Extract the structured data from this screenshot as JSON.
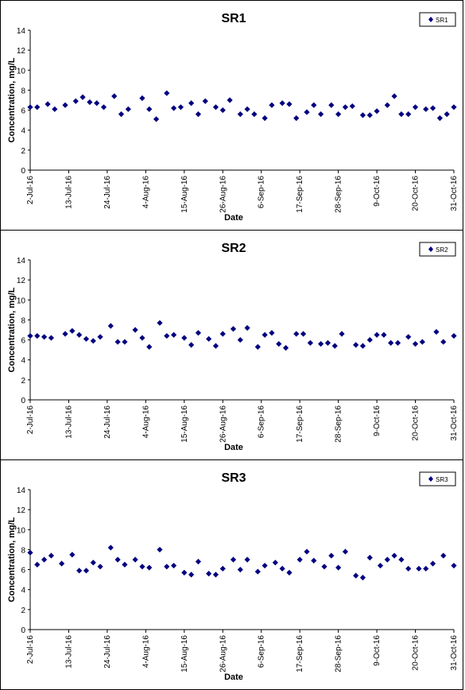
{
  "chart_data": [
    {
      "type": "scatter",
      "title": "SR1",
      "xlabel": "Date",
      "ylabel": "Concentration, mg/L",
      "ylim": [
        0,
        14
      ],
      "yticks": [
        0,
        2,
        4,
        6,
        8,
        10,
        12,
        14
      ],
      "xlim": [
        "2016-07-02",
        "2016-10-31"
      ],
      "xtick_labels": [
        "2-Jul-16",
        "13-Jul-16",
        "24-Jul-16",
        "4-Aug-16",
        "15-Aug-16",
        "26-Aug-16",
        "6-Sep-16",
        "17-Sep-16",
        "28-Sep-16",
        "9-Oct-16",
        "20-Oct-16",
        "31-Oct-16"
      ],
      "grid": false,
      "legend": "top-right",
      "series": [
        {
          "name": "SR1",
          "color": "#000080",
          "x": [
            "2016-07-02",
            "2016-07-04",
            "2016-07-07",
            "2016-07-09",
            "2016-07-12",
            "2016-07-15",
            "2016-07-17",
            "2016-07-19",
            "2016-07-21",
            "2016-07-23",
            "2016-07-26",
            "2016-07-28",
            "2016-07-30",
            "2016-08-03",
            "2016-08-05",
            "2016-08-07",
            "2016-08-10",
            "2016-08-12",
            "2016-08-14",
            "2016-08-17",
            "2016-08-19",
            "2016-08-21",
            "2016-08-24",
            "2016-08-26",
            "2016-08-28",
            "2016-08-31",
            "2016-09-02",
            "2016-09-04",
            "2016-09-07",
            "2016-09-09",
            "2016-09-12",
            "2016-09-14",
            "2016-09-16",
            "2016-09-19",
            "2016-09-21",
            "2016-09-23",
            "2016-09-26",
            "2016-09-28",
            "2016-09-30",
            "2016-10-02",
            "2016-10-05",
            "2016-10-07",
            "2016-10-09",
            "2016-10-12",
            "2016-10-14",
            "2016-10-16",
            "2016-10-18",
            "2016-10-20",
            "2016-10-23",
            "2016-10-25",
            "2016-10-27",
            "2016-10-29",
            "2016-10-31"
          ],
          "y": [
            6.3,
            6.3,
            6.6,
            6.1,
            6.5,
            6.9,
            7.3,
            6.8,
            6.7,
            6.3,
            7.4,
            5.6,
            6.1,
            7.2,
            6.1,
            5.1,
            7.7,
            6.2,
            6.3,
            6.7,
            5.6,
            6.9,
            6.3,
            6.0,
            7.0,
            5.6,
            6.1,
            5.6,
            5.2,
            6.5,
            6.7,
            6.6,
            5.2,
            5.8,
            6.5,
            5.6,
            6.5,
            5.6,
            6.3,
            6.4,
            5.5,
            5.5,
            5.9,
            6.5,
            7.4,
            5.6,
            5.6,
            6.3,
            6.1,
            6.2,
            5.2,
            5.6,
            6.3
          ]
        }
      ]
    },
    {
      "type": "scatter",
      "title": "SR2",
      "xlabel": "Date",
      "ylabel": "Concentration, mg/L",
      "ylim": [
        0,
        14
      ],
      "yticks": [
        0,
        2,
        4,
        6,
        8,
        10,
        12,
        14
      ],
      "xlim": [
        "2016-07-02",
        "2016-10-31"
      ],
      "xtick_labels": [
        "2-Jul-16",
        "13-Jul-16",
        "24-Jul-16",
        "4-Aug-16",
        "15-Aug-16",
        "26-Aug-16",
        "6-Sep-16",
        "17-Sep-16",
        "28-Sep-16",
        "9-Oct-16",
        "20-Oct-16",
        "31-Oct-16"
      ],
      "grid": false,
      "legend": "top-right",
      "series": [
        {
          "name": "SR2",
          "color": "#000080",
          "x": [
            "2016-07-02",
            "2016-07-04",
            "2016-07-06",
            "2016-07-08",
            "2016-07-12",
            "2016-07-14",
            "2016-07-16",
            "2016-07-18",
            "2016-07-20",
            "2016-07-22",
            "2016-07-25",
            "2016-07-27",
            "2016-07-29",
            "2016-08-01",
            "2016-08-03",
            "2016-08-05",
            "2016-08-08",
            "2016-08-10",
            "2016-08-12",
            "2016-08-15",
            "2016-08-17",
            "2016-08-19",
            "2016-08-22",
            "2016-08-24",
            "2016-08-26",
            "2016-08-29",
            "2016-08-31",
            "2016-09-02",
            "2016-09-05",
            "2016-09-07",
            "2016-09-09",
            "2016-09-11",
            "2016-09-13",
            "2016-09-16",
            "2016-09-18",
            "2016-09-20",
            "2016-09-23",
            "2016-09-25",
            "2016-09-27",
            "2016-09-29",
            "2016-10-03",
            "2016-10-05",
            "2016-10-07",
            "2016-10-09",
            "2016-10-11",
            "2016-10-13",
            "2016-10-15",
            "2016-10-18",
            "2016-10-20",
            "2016-10-22",
            "2016-10-26",
            "2016-10-28",
            "2016-10-31"
          ],
          "y": [
            6.4,
            6.4,
            6.3,
            6.2,
            6.6,
            6.9,
            6.5,
            6.1,
            5.9,
            6.3,
            7.4,
            5.8,
            5.8,
            7.0,
            6.2,
            5.3,
            7.7,
            6.4,
            6.5,
            6.2,
            5.5,
            6.7,
            6.1,
            5.4,
            6.6,
            7.1,
            6.0,
            7.2,
            5.3,
            6.5,
            6.7,
            5.6,
            5.2,
            6.6,
            6.6,
            5.7,
            5.6,
            5.7,
            5.4,
            6.6,
            5.5,
            5.4,
            6.0,
            6.5,
            6.5,
            5.7,
            5.7,
            6.3,
            5.6,
            5.8,
            6.8,
            5.8,
            6.4
          ]
        }
      ]
    },
    {
      "type": "scatter",
      "title": "SR3",
      "xlabel": "Date",
      "ylabel": "Concentration, mg/L",
      "ylim": [
        0,
        14
      ],
      "yticks": [
        0,
        2,
        4,
        6,
        8,
        10,
        12,
        14
      ],
      "xlim": [
        "2016-07-02",
        "2016-10-31"
      ],
      "xtick_labels": [
        "2-Jul-16",
        "13-Jul-16",
        "24-Jul-16",
        "4-Aug-16",
        "15-Aug-16",
        "26-Aug-16",
        "6-Sep-16",
        "17-Sep-16",
        "28-Sep-16",
        "9-Oct-16",
        "20-Oct-16",
        "31-Oct-16"
      ],
      "grid": false,
      "legend": "top-right",
      "series": [
        {
          "name": "SR3",
          "color": "#000080",
          "x": [
            "2016-07-02",
            "2016-07-04",
            "2016-07-06",
            "2016-07-08",
            "2016-07-11",
            "2016-07-14",
            "2016-07-16",
            "2016-07-18",
            "2016-07-20",
            "2016-07-22",
            "2016-07-25",
            "2016-07-27",
            "2016-07-29",
            "2016-08-01",
            "2016-08-03",
            "2016-08-05",
            "2016-08-08",
            "2016-08-10",
            "2016-08-12",
            "2016-08-15",
            "2016-08-17",
            "2016-08-19",
            "2016-08-22",
            "2016-08-24",
            "2016-08-26",
            "2016-08-29",
            "2016-08-31",
            "2016-09-02",
            "2016-09-05",
            "2016-09-07",
            "2016-09-10",
            "2016-09-12",
            "2016-09-14",
            "2016-09-17",
            "2016-09-19",
            "2016-09-21",
            "2016-09-24",
            "2016-09-26",
            "2016-09-28",
            "2016-09-30",
            "2016-10-03",
            "2016-10-05",
            "2016-10-07",
            "2016-10-10",
            "2016-10-12",
            "2016-10-14",
            "2016-10-16",
            "2016-10-18",
            "2016-10-21",
            "2016-10-23",
            "2016-10-25",
            "2016-10-28",
            "2016-10-31"
          ],
          "y": [
            7.7,
            6.5,
            7.0,
            7.4,
            6.6,
            7.5,
            5.9,
            5.9,
            6.7,
            6.3,
            8.2,
            7.0,
            6.5,
            7.0,
            6.3,
            6.2,
            8.0,
            6.3,
            6.4,
            5.7,
            5.5,
            6.8,
            5.6,
            5.5,
            6.1,
            7.0,
            6.0,
            7.0,
            5.8,
            6.4,
            6.7,
            6.1,
            5.7,
            7.0,
            7.8,
            6.9,
            6.3,
            7.4,
            6.2,
            7.8,
            5.4,
            5.2,
            7.2,
            6.4,
            7.0,
            7.4,
            7.0,
            6.1,
            6.1,
            6.1,
            6.6,
            7.4,
            6.4
          ]
        }
      ]
    }
  ]
}
